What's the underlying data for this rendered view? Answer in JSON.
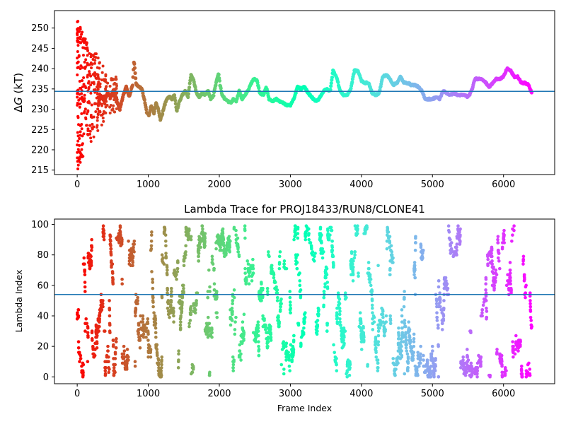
{
  "chart_data": [
    {
      "type": "scatter",
      "title": "",
      "xlabel": "",
      "ylabel_symbol": "ΔG",
      "ylabel_italic_part": "G",
      "ylabel_prefix": "Δ",
      "ylabel_unit": " (kT)",
      "xlim": [
        -320,
        6720
      ],
      "ylim": [
        213.9,
        254.3
      ],
      "xticks": [
        0,
        1000,
        2000,
        3000,
        4000,
        5000,
        6000
      ],
      "yticks": [
        215,
        220,
        225,
        230,
        235,
        240,
        245,
        250
      ],
      "hline": 234.4,
      "colormap": "rainbow (red at frame 0 → purple at frame 6400)",
      "trace_knots": [
        [
          300,
          231.5
        ],
        [
          330,
          233.5
        ],
        [
          380,
          232.0
        ],
        [
          430,
          234.0
        ],
        [
          470,
          233.0
        ],
        [
          520,
          235.0
        ],
        [
          560,
          232.0
        ],
        [
          600,
          230.0
        ],
        [
          640,
          233.0
        ],
        [
          690,
          235.5
        ],
        [
          730,
          233.0
        ],
        [
          780,
          236.0
        ],
        [
          800,
          242.0
        ],
        [
          830,
          236.0
        ],
        [
          870,
          235.5
        ],
        [
          910,
          235.0
        ],
        [
          950,
          232.0
        ],
        [
          980,
          229.0
        ],
        [
          1010,
          228.5
        ],
        [
          1040,
          231.0
        ],
        [
          1080,
          229.0
        ],
        [
          1110,
          231.5
        ],
        [
          1140,
          230.0
        ],
        [
          1170,
          227.5
        ],
        [
          1200,
          229.0
        ],
        [
          1230,
          231.0
        ],
        [
          1260,
          232.5
        ],
        [
          1300,
          233.0
        ],
        [
          1330,
          232.5
        ],
        [
          1370,
          233.5
        ],
        [
          1400,
          229.5
        ],
        [
          1440,
          232.0
        ],
        [
          1480,
          233.5
        ],
        [
          1520,
          234.5
        ],
        [
          1560,
          233.0
        ],
        [
          1600,
          238.5
        ],
        [
          1640,
          237.0
        ],
        [
          1680,
          234.0
        ],
        [
          1720,
          233.0
        ],
        [
          1760,
          234.0
        ],
        [
          1800,
          233.5
        ],
        [
          1840,
          234.5
        ],
        [
          1880,
          232.5
        ],
        [
          1920,
          233.5
        ],
        [
          1960,
          237.0
        ],
        [
          1990,
          239.0
        ],
        [
          2010,
          236.0
        ],
        [
          2040,
          233.5
        ],
        [
          2080,
          232.5
        ],
        [
          2120,
          232.0
        ],
        [
          2160,
          231.5
        ],
        [
          2200,
          232.5
        ],
        [
          2240,
          232.0
        ],
        [
          2280,
          234.5
        ],
        [
          2320,
          232.5
        ],
        [
          2360,
          233.5
        ],
        [
          2400,
          234.5
        ],
        [
          2440,
          236.0
        ],
        [
          2480,
          237.5
        ],
        [
          2530,
          237.0
        ],
        [
          2570,
          234.0
        ],
        [
          2620,
          233.5
        ],
        [
          2660,
          235.5
        ],
        [
          2700,
          232.5
        ],
        [
          2750,
          232.0
        ],
        [
          2800,
          232.5
        ],
        [
          2850,
          232.0
        ],
        [
          2900,
          231.5
        ],
        [
          2950,
          231.0
        ],
        [
          3000,
          231.0
        ],
        [
          3050,
          232.5
        ],
        [
          3100,
          235.5
        ],
        [
          3150,
          235.0
        ],
        [
          3200,
          235.5
        ],
        [
          3250,
          234.0
        ],
        [
          3300,
          233.0
        ],
        [
          3350,
          232.0
        ],
        [
          3400,
          232.5
        ],
        [
          3450,
          234.0
        ],
        [
          3500,
          235.0
        ],
        [
          3560,
          234.5
        ],
        [
          3600,
          239.5
        ],
        [
          3650,
          238.0
        ],
        [
          3700,
          234.5
        ],
        [
          3750,
          233.5
        ],
        [
          3800,
          233.5
        ],
        [
          3850,
          235.0
        ],
        [
          3900,
          239.5
        ],
        [
          3950,
          239.5
        ],
        [
          4000,
          237.0
        ],
        [
          4050,
          236.5
        ],
        [
          4100,
          236.5
        ],
        [
          4150,
          234.0
        ],
        [
          4200,
          233.5
        ],
        [
          4250,
          234.0
        ],
        [
          4300,
          238.0
        ],
        [
          4350,
          238.5
        ],
        [
          4400,
          237.5
        ],
        [
          4450,
          236.0
        ],
        [
          4500,
          236.5
        ],
        [
          4550,
          238.0
        ],
        [
          4600,
          236.5
        ],
        [
          4650,
          236.5
        ],
        [
          4700,
          236.0
        ],
        [
          4750,
          236.0
        ],
        [
          4800,
          235.5
        ],
        [
          4850,
          234.5
        ],
        [
          4900,
          232.5
        ],
        [
          4950,
          232.5
        ],
        [
          5000,
          232.5
        ],
        [
          5050,
          233.0
        ],
        [
          5100,
          232.5
        ],
        [
          5150,
          234.5
        ],
        [
          5200,
          234.0
        ],
        [
          5250,
          233.5
        ],
        [
          5300,
          234.0
        ],
        [
          5350,
          233.5
        ],
        [
          5400,
          233.5
        ],
        [
          5450,
          233.5
        ],
        [
          5500,
          233.0
        ],
        [
          5550,
          234.5
        ],
        [
          5600,
          237.5
        ],
        [
          5650,
          237.5
        ],
        [
          5700,
          237.5
        ],
        [
          5750,
          236.5
        ],
        [
          5800,
          235.5
        ],
        [
          5850,
          236.5
        ],
        [
          5900,
          237.5
        ],
        [
          5950,
          237.5
        ],
        [
          6000,
          238.0
        ],
        [
          6050,
          240.0
        ],
        [
          6100,
          239.5
        ],
        [
          6150,
          238.0
        ],
        [
          6200,
          238.0
        ],
        [
          6250,
          236.5
        ],
        [
          6300,
          236.5
        ],
        [
          6350,
          236.0
        ],
        [
          6400,
          234.0
        ]
      ],
      "early_scatter_y_range": [
        215,
        252
      ]
    },
    {
      "type": "scatter",
      "title": "Lambda Trace for PROJ18433/RUN8/CLONE41",
      "xlabel": "Frame Index",
      "ylabel": "Lambda Index",
      "xlim": [
        -320,
        6720
      ],
      "ylim": [
        -4.5,
        103.5
      ],
      "xticks": [
        0,
        1000,
        2000,
        3000,
        4000,
        5000,
        6000
      ],
      "yticks": [
        0,
        20,
        40,
        60,
        80,
        100
      ],
      "hline": 54,
      "lambda_min": 0,
      "lambda_max": 99,
      "frame_range": [
        0,
        6400
      ],
      "colormap": "rainbow (red at frame 0 → purple at frame 6400)"
    }
  ]
}
